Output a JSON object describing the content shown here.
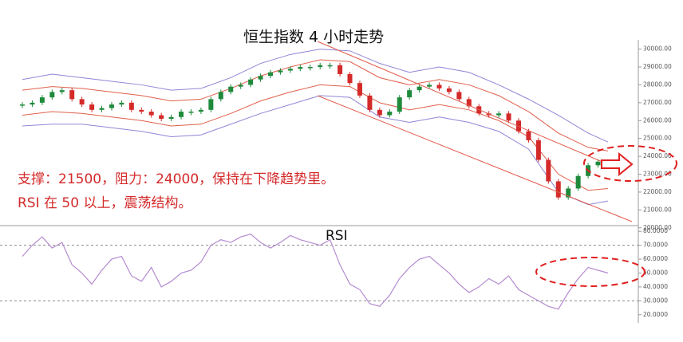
{
  "chart_data": [
    {
      "type": "candlestick",
      "title": "恒生指数  4 小时走势",
      "annotations": [
        "支撑：21500，阻力：24000，保持在下降趋势里。",
        "RSI 在 50 以上，震荡结构。"
      ],
      "values": [
        26900,
        27000,
        27300,
        27600,
        27700,
        27200,
        26900,
        26600,
        26700,
        26900,
        27000,
        26600,
        26500,
        26300,
        26100,
        26200,
        26500,
        26500,
        26600,
        27200,
        27600,
        27900,
        28000,
        28300,
        28500,
        28700,
        28800,
        28900,
        29000,
        29000,
        29100,
        29100,
        28600,
        28100,
        27400,
        26600,
        26300,
        26500,
        27300,
        27700,
        27900,
        28000,
        27800,
        27600,
        27200,
        26800,
        26400,
        26300,
        26400,
        26000,
        25400,
        24900,
        23800,
        22600,
        21700,
        22200,
        22900,
        23500,
        23700,
        23600
      ],
      "up_color": "#1f8a3c",
      "down_color": "#d42a2a",
      "band_x": [
        0,
        3,
        6,
        9,
        12,
        15,
        18,
        21,
        24,
        27,
        30,
        33,
        36,
        39,
        42,
        45,
        48,
        51,
        54,
        57,
        59
      ],
      "bands": [
        {
          "color": "#8f86d6",
          "values": [
            28300,
            28600,
            28400,
            28200,
            28000,
            27700,
            27800,
            28400,
            29200,
            29700,
            30000,
            29900,
            29200,
            28700,
            29000,
            28700,
            28000,
            27200,
            26300,
            25300,
            24800
          ]
        },
        {
          "color": "#e0604a",
          "values": [
            27700,
            27900,
            27800,
            27600,
            27400,
            27100,
            27200,
            27800,
            28500,
            29000,
            29400,
            29300,
            28400,
            28000,
            28300,
            28000,
            27400,
            26500,
            25300,
            24500,
            24300
          ]
        },
        {
          "color": "#e0604a",
          "values": [
            26300,
            26500,
            26400,
            26200,
            26000,
            25700,
            25800,
            26400,
            27100,
            27600,
            28000,
            27900,
            27000,
            26600,
            26900,
            26600,
            26000,
            25100,
            23000,
            22100,
            22200
          ]
        },
        {
          "color": "#8f86d6",
          "values": [
            25700,
            25800,
            25800,
            25600,
            25400,
            25100,
            25200,
            25800,
            26400,
            26900,
            27400,
            27300,
            26200,
            25900,
            26200,
            25900,
            25400,
            24400,
            22000,
            21300,
            21500
          ]
        }
      ],
      "ylim": [
        19900,
        30250
      ],
      "yticks": [
        {
          "value": 20000,
          "label": "20000.00"
        },
        {
          "value": 21000,
          "label": "21000.00"
        },
        {
          "value": 22000,
          "label": "22000.00"
        },
        {
          "value": 23000,
          "label": "23000.00"
        },
        {
          "value": 24000,
          "label": "24000.00"
        },
        {
          "value": 25000,
          "label": "25000.00"
        },
        {
          "value": 26000,
          "label": "26000.00"
        },
        {
          "value": 27000,
          "label": "27000.00"
        },
        {
          "value": 28000,
          "label": "28000.00"
        },
        {
          "value": 29000,
          "label": "29000.00"
        },
        {
          "value": 30000,
          "label": "30000.00"
        }
      ]
    },
    {
      "type": "line",
      "title": "RSI",
      "color": "#b48ad0",
      "values": [
        62,
        70,
        76,
        68,
        72,
        56,
        50,
        42,
        52,
        60,
        62,
        48,
        44,
        54,
        40,
        44,
        50,
        52,
        58,
        70,
        74,
        72,
        76,
        78,
        72,
        68,
        72,
        77,
        74,
        72,
        70,
        74,
        56,
        42,
        38,
        28,
        26,
        34,
        46,
        54,
        60,
        62,
        56,
        50,
        42,
        36,
        40,
        46,
        42,
        48,
        38,
        34,
        30,
        26,
        24,
        36,
        46,
        54,
        52,
        50
      ],
      "ylim": [
        17,
        83
      ],
      "yticks": [
        {
          "value": 20,
          "label": "20.0000"
        },
        {
          "value": 30,
          "label": "30.0000"
        },
        {
          "value": 40,
          "label": "40.0000"
        },
        {
          "value": 50,
          "label": "50.0000"
        },
        {
          "value": 60,
          "label": "60.0000"
        },
        {
          "value": 70,
          "label": "70.0000"
        },
        {
          "value": 80,
          "label": "80.0000"
        }
      ],
      "reference_lines": [
        30,
        70
      ]
    }
  ]
}
